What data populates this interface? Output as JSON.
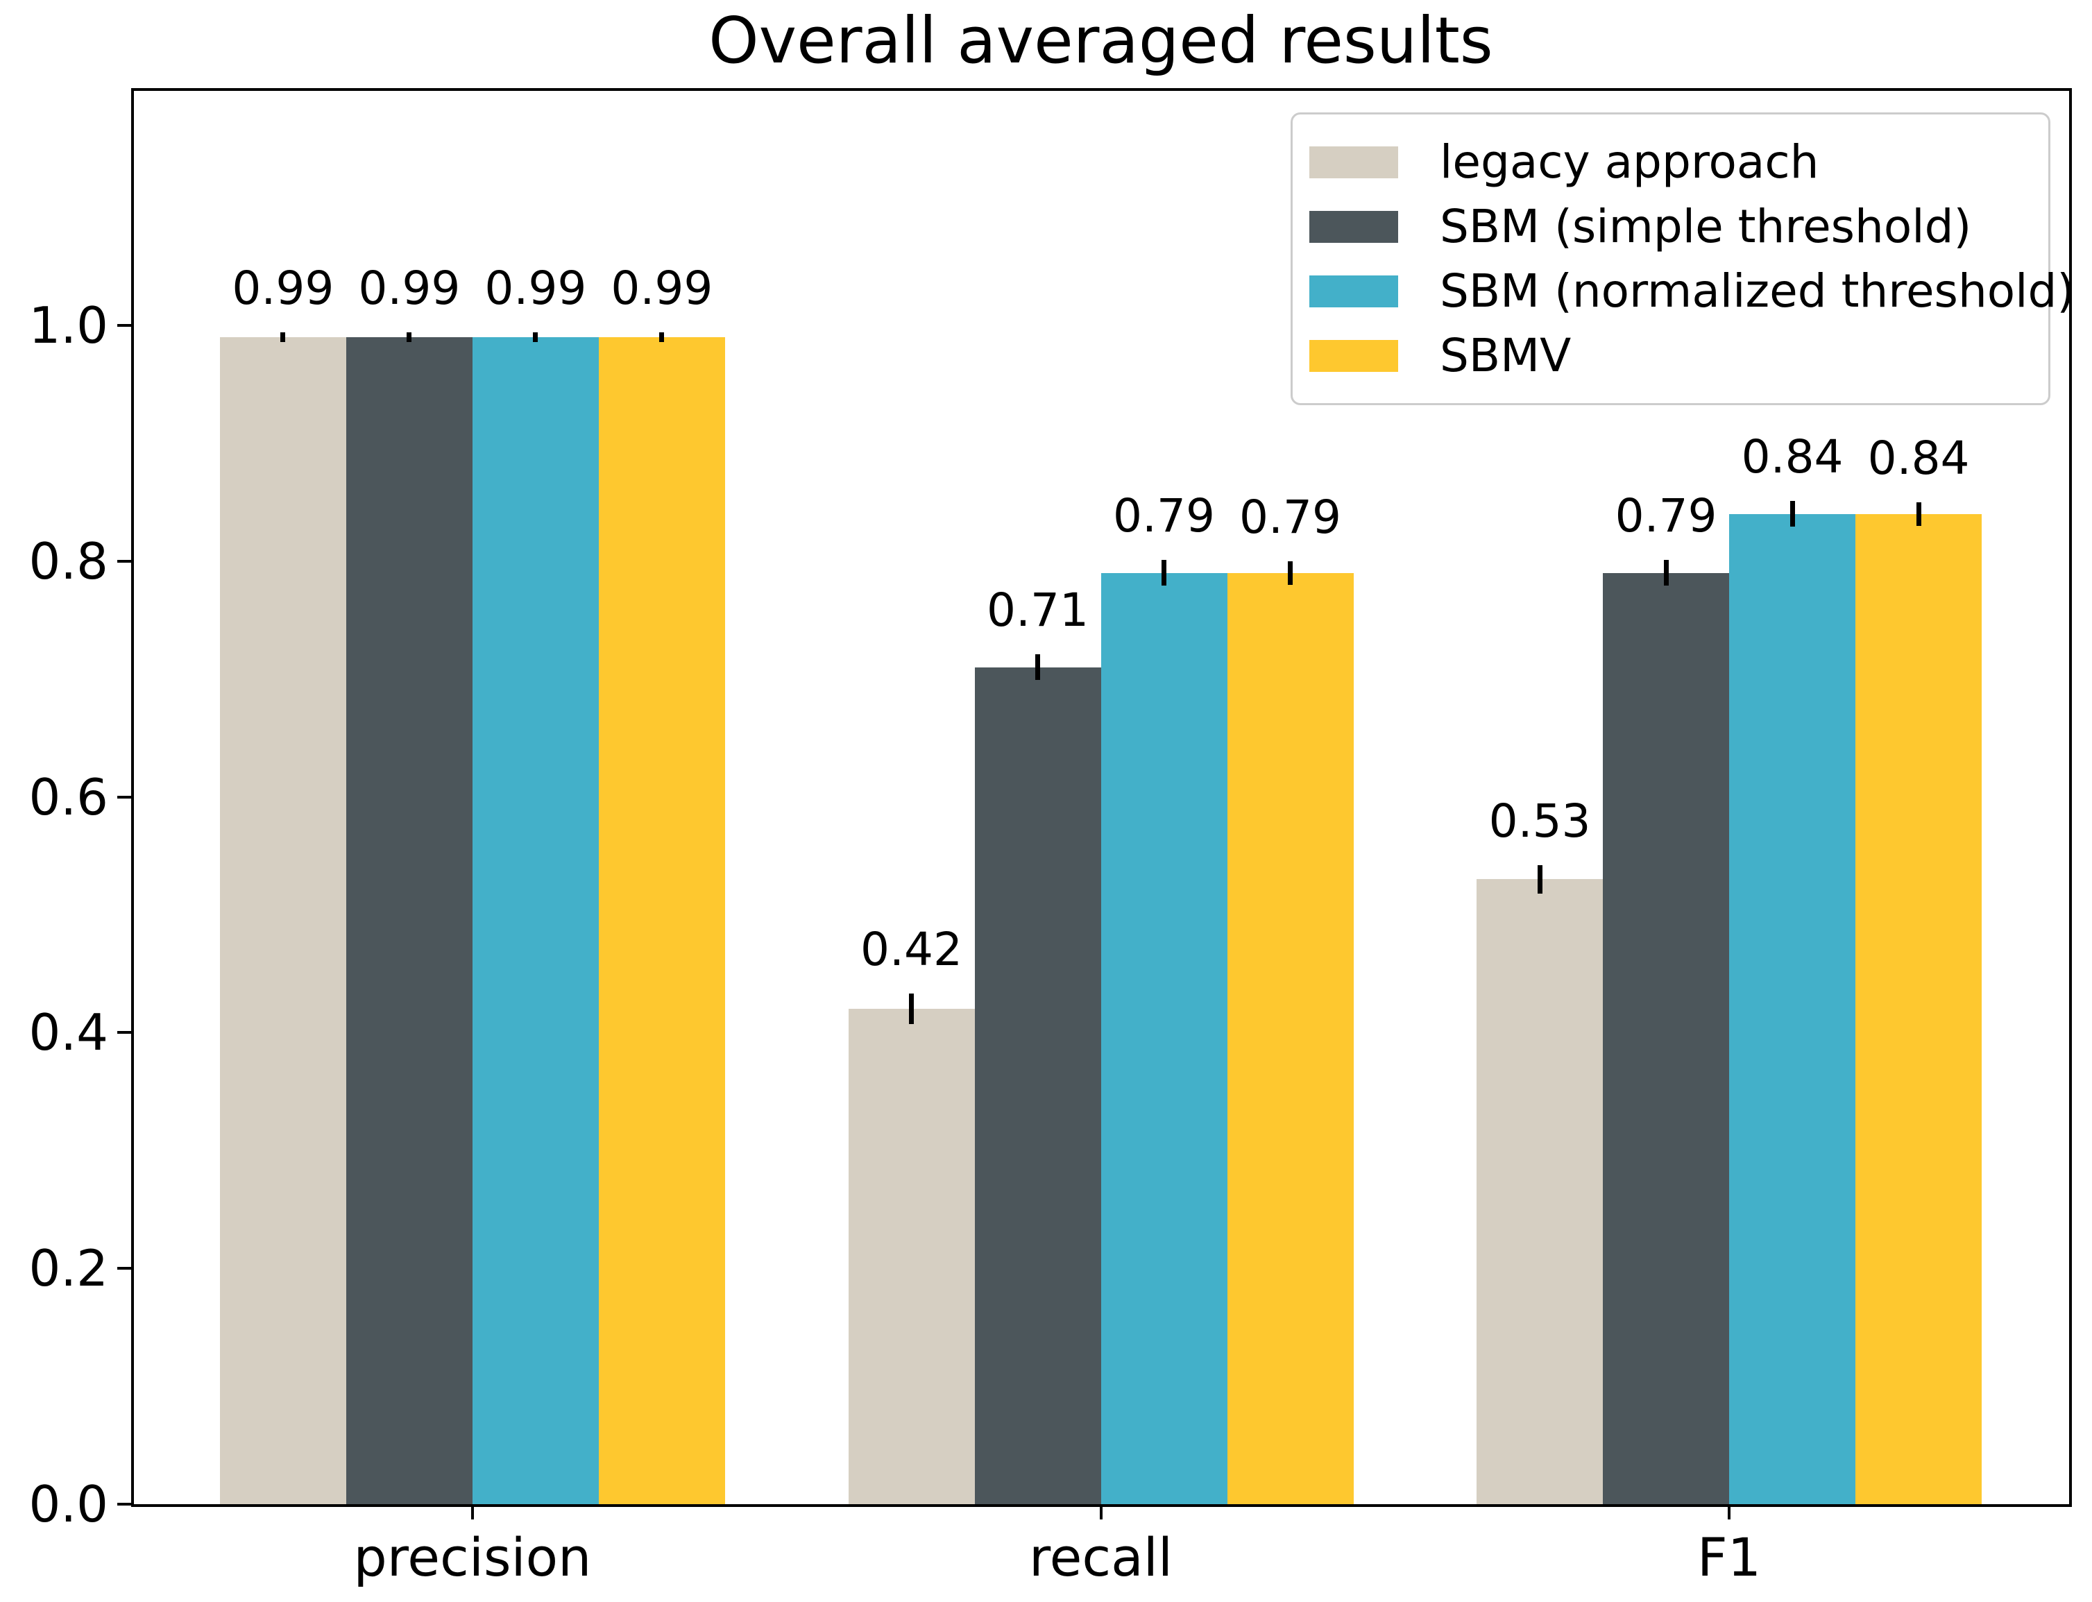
{
  "chart_data": {
    "type": "bar",
    "title": "Overall averaged results",
    "xlabel": "",
    "ylabel": "",
    "categories": [
      "precision",
      "recall",
      "F1"
    ],
    "series": [
      {
        "name": "legacy approach",
        "color": "#d6cfc2",
        "values": [
          0.99,
          0.42,
          0.53
        ],
        "errors": [
          0.004,
          0.013,
          0.012
        ]
      },
      {
        "name": "SBM (simple threshold)",
        "color": "#4c565b",
        "values": [
          0.99,
          0.71,
          0.79
        ],
        "errors": [
          0.004,
          0.011,
          0.011
        ]
      },
      {
        "name": "SBM (normalized threshold)",
        "color": "#43b0c9",
        "values": [
          0.99,
          0.79,
          0.84
        ],
        "errors": [
          0.004,
          0.011,
          0.011
        ]
      },
      {
        "name": "SBMV",
        "color": "#fec82f",
        "values": [
          0.99,
          0.79,
          0.84
        ],
        "errors": [
          0.004,
          0.01,
          0.01
        ]
      }
    ],
    "ylim": [
      0,
      1.2
    ],
    "yticks": [
      "0.0",
      "0.2",
      "0.4",
      "0.6",
      "0.8",
      "1.0"
    ],
    "grid": false,
    "legend_position": "upper right",
    "bar_labels_decimals": 2,
    "error_bars": true
  }
}
